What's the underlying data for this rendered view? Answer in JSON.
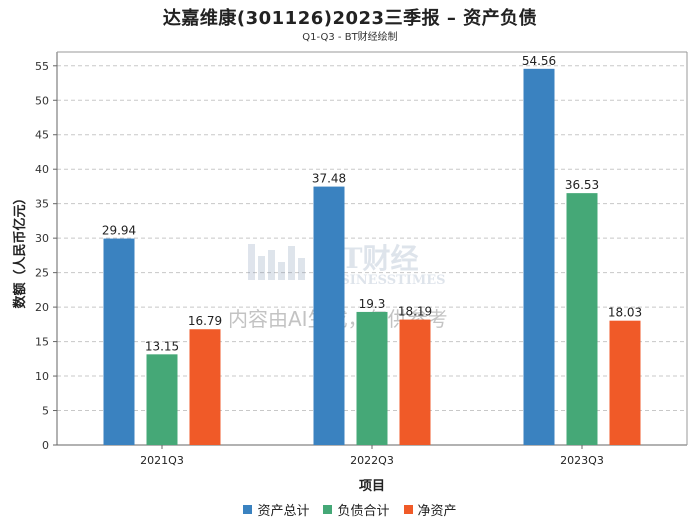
{
  "chart_data": {
    "type": "bar",
    "title": "达嘉维康(301126)2023三季报 – 资产负债",
    "subtitle": "Q1-Q3 - BT财经绘制",
    "xlabel": "项目",
    "ylabel": "数额（人民币亿元）",
    "ylim": [
      0,
      57
    ],
    "yticks": [
      0,
      5,
      10,
      15,
      20,
      25,
      30,
      35,
      40,
      45,
      50,
      55
    ],
    "grid": true,
    "legend_position": "bottom",
    "categories": [
      "2021Q3",
      "2022Q3",
      "2023Q3"
    ],
    "series": [
      {
        "name": "资产总计",
        "color": "#3a82c0",
        "values": [
          29.94,
          37.48,
          54.56
        ],
        "labels": [
          "29.94",
          "37.48",
          "54.56"
        ]
      },
      {
        "name": "负债合计",
        "color": "#45a877",
        "values": [
          13.15,
          19.3,
          36.53
        ],
        "labels": [
          "13.15",
          "19.3",
          "36.53"
        ]
      },
      {
        "name": "净资产",
        "color": "#f05a28",
        "values": [
          16.79,
          18.19,
          18.03
        ],
        "labels": [
          "16.79",
          "18.19",
          "18.03"
        ]
      }
    ]
  },
  "watermark": {
    "brand": "BT财经",
    "brand_sub": "BUSINESSTIMES",
    "disclaimer": "内容由AI生成，仅供参考"
  }
}
